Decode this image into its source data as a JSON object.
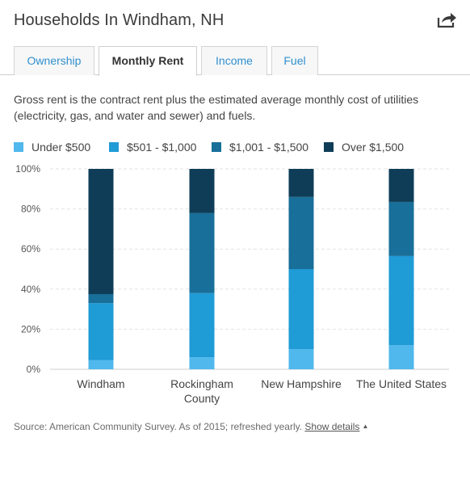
{
  "header": {
    "title": "Households In Windham, NH",
    "share_icon": "share-arrow-icon"
  },
  "tabs": [
    {
      "label": "Ownership",
      "active": false
    },
    {
      "label": "Monthly Rent",
      "active": true
    },
    {
      "label": "Income",
      "active": false
    },
    {
      "label": "Fuel",
      "active": false
    }
  ],
  "description": "Gross rent is the contract rent plus the estimated average monthly cost of utilities (electricity, gas, and water and sewer) and fuels.",
  "legend": [
    {
      "label": "Under $500",
      "color": "#50b8ec"
    },
    {
      "label": "$501 - $1,000",
      "color": "#1f9bd6"
    },
    {
      "label": "$1,001 - $1,500",
      "color": "#186f99"
    },
    {
      "label": "Over $1,500",
      "color": "#0f3d57"
    }
  ],
  "chart_data": {
    "type": "bar",
    "stacked": true,
    "categories": [
      "Windham",
      "Rockingham County",
      "New Hampshire",
      "The United States"
    ],
    "series": [
      {
        "name": "Under $500",
        "color": "#50b8ec",
        "values": [
          4.5,
          6,
          10,
          12
        ]
      },
      {
        "name": "$501 - $1,000",
        "color": "#1f9bd6",
        "values": [
          28.5,
          32,
          40,
          44.5
        ]
      },
      {
        "name": "$1,001 - $1,500",
        "color": "#186f99",
        "values": [
          4.5,
          40,
          36,
          27
        ]
      },
      {
        "name": "Over $1,500",
        "color": "#0f3d57",
        "values": [
          62.5,
          22,
          14,
          16.5
        ]
      }
    ],
    "yticks": [
      "0%",
      "20%",
      "40%",
      "60%",
      "80%",
      "100%"
    ],
    "ylim": [
      0,
      100
    ],
    "grid": true,
    "legend_position": "top-left"
  },
  "footer": {
    "source_text": "Source: American Community Survey. As of 2015; refreshed yearly.",
    "link_label": "Show details"
  }
}
